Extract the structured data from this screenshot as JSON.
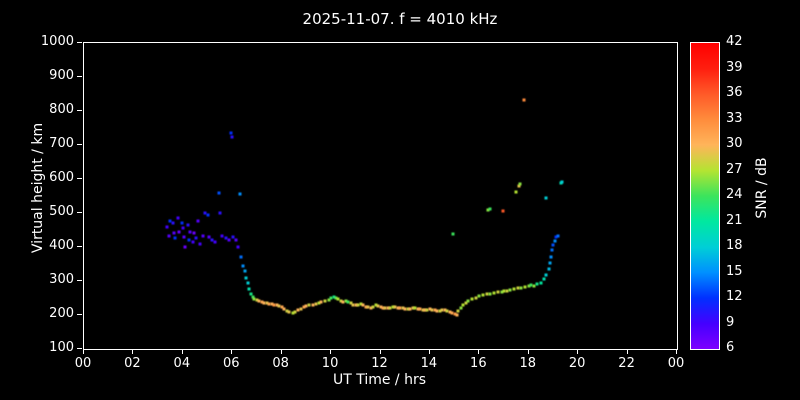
{
  "chart_data": {
    "type": "scatter",
    "title": "2025-11-07. f = 4010 kHz",
    "xlabel": "UT Time / hrs",
    "ylabel": "Virtual height / km",
    "xlim": [
      0,
      24
    ],
    "ylim": [
      100,
      1000
    ],
    "x_tick_labels": [
      "00",
      "02",
      "04",
      "06",
      "08",
      "10",
      "12",
      "14",
      "16",
      "18",
      "20",
      "22",
      "00"
    ],
    "y_tick_values": [
      100,
      200,
      300,
      400,
      500,
      600,
      700,
      800,
      900,
      1000
    ],
    "grid": false,
    "background": "#000000",
    "point_color_meaning": "SNR in dB mapped through rainbow colorbar",
    "colorbar": {
      "label": "SNR / dB",
      "min": 6,
      "max": 42,
      "ticks": [
        6,
        9,
        12,
        15,
        18,
        21,
        24,
        27,
        30,
        33,
        36,
        39,
        42
      ],
      "stops": [
        [
          6,
          "#7d00ff"
        ],
        [
          9,
          "#4400ff"
        ],
        [
          12,
          "#0030ff"
        ],
        [
          15,
          "#0090ff"
        ],
        [
          18,
          "#00cfd6"
        ],
        [
          21,
          "#00e8a0"
        ],
        [
          24,
          "#3ce45c"
        ],
        [
          27,
          "#b4e432"
        ],
        [
          30,
          "#ffb45a"
        ],
        [
          33,
          "#ff8c3c"
        ],
        [
          36,
          "#ff5a28"
        ],
        [
          39,
          "#ff1e0f"
        ],
        [
          42,
          "#ff0000"
        ]
      ]
    },
    "points": [
      [
        3.35,
        460,
        9
      ],
      [
        3.45,
        432,
        8
      ],
      [
        3.5,
        476,
        12
      ],
      [
        3.6,
        470,
        10
      ],
      [
        3.65,
        440,
        8
      ],
      [
        3.7,
        425,
        12
      ],
      [
        3.8,
        486,
        9
      ],
      [
        3.85,
        445,
        7
      ],
      [
        3.95,
        470,
        12
      ],
      [
        4.0,
        455,
        9
      ],
      [
        4.05,
        430,
        8
      ],
      [
        4.1,
        400,
        7
      ],
      [
        4.2,
        466,
        10
      ],
      [
        4.25,
        420,
        12
      ],
      [
        4.3,
        445,
        8
      ],
      [
        4.4,
        415,
        9
      ],
      [
        4.45,
        440,
        7
      ],
      [
        4.55,
        425,
        10
      ],
      [
        4.6,
        476,
        8
      ],
      [
        4.7,
        410,
        9
      ],
      [
        4.8,
        432,
        8
      ],
      [
        4.9,
        500,
        10
      ],
      [
        5.0,
        494,
        12
      ],
      [
        5.05,
        430,
        8
      ],
      [
        5.2,
        420,
        10
      ],
      [
        5.3,
        415,
        9
      ],
      [
        5.45,
        560,
        13
      ],
      [
        5.5,
        500,
        10
      ],
      [
        5.6,
        432,
        9
      ],
      [
        5.75,
        426,
        10
      ],
      [
        5.85,
        420,
        8
      ],
      [
        5.95,
        735,
        12
      ],
      [
        6.0,
        724,
        10
      ],
      [
        6.05,
        430,
        10
      ],
      [
        6.15,
        420,
        8
      ],
      [
        6.25,
        400,
        9
      ],
      [
        6.3,
        555,
        15
      ],
      [
        6.35,
        370,
        14
      ],
      [
        6.45,
        345,
        15
      ],
      [
        6.5,
        330,
        16
      ],
      [
        6.55,
        310,
        18
      ],
      [
        6.62,
        295,
        18
      ],
      [
        6.68,
        276,
        20
      ],
      [
        6.75,
        262,
        22
      ],
      [
        6.82,
        252,
        24
      ],
      [
        6.9,
        248,
        26
      ],
      [
        7.0,
        243,
        28
      ],
      [
        7.1,
        240,
        30
      ],
      [
        7.2,
        238,
        31
      ],
      [
        7.3,
        236,
        30
      ],
      [
        7.4,
        234,
        29
      ],
      [
        7.5,
        232,
        31
      ],
      [
        7.6,
        231,
        30
      ],
      [
        7.7,
        229,
        32
      ],
      [
        7.8,
        228,
        30
      ],
      [
        7.9,
        226,
        29
      ],
      [
        8.0,
        224,
        31
      ],
      [
        8.1,
        218,
        30
      ],
      [
        8.2,
        212,
        28
      ],
      [
        8.3,
        208,
        29
      ],
      [
        8.45,
        205,
        27
      ],
      [
        8.55,
        208,
        28
      ],
      [
        8.65,
        214,
        30
      ],
      [
        8.8,
        219,
        29
      ],
      [
        8.9,
        223,
        31
      ],
      [
        9.0,
        226,
        30
      ],
      [
        9.1,
        228,
        28
      ],
      [
        9.25,
        230,
        30
      ],
      [
        9.4,
        232,
        29
      ],
      [
        9.5,
        234,
        27
      ],
      [
        9.6,
        237,
        30
      ],
      [
        9.75,
        240,
        28
      ],
      [
        9.9,
        245,
        26
      ],
      [
        10.0,
        250,
        24
      ],
      [
        10.1,
        253,
        22
      ],
      [
        10.2,
        251,
        25
      ],
      [
        10.3,
        246,
        27
      ],
      [
        10.4,
        241,
        28
      ],
      [
        10.5,
        238,
        30
      ],
      [
        10.6,
        242,
        26
      ],
      [
        10.7,
        239,
        24
      ],
      [
        10.8,
        234,
        28
      ],
      [
        10.9,
        230,
        29
      ],
      [
        11.0,
        228,
        30
      ],
      [
        11.1,
        229,
        28
      ],
      [
        11.2,
        231,
        27
      ],
      [
        11.3,
        228,
        30
      ],
      [
        11.4,
        225,
        31
      ],
      [
        11.5,
        223,
        29
      ],
      [
        11.6,
        222,
        30
      ],
      [
        11.7,
        225,
        28
      ],
      [
        11.8,
        228,
        27
      ],
      [
        11.9,
        226,
        29
      ],
      [
        12.0,
        224,
        30
      ],
      [
        12.1,
        222,
        31
      ],
      [
        12.2,
        221,
        29
      ],
      [
        12.3,
        220,
        30
      ],
      [
        12.4,
        221,
        28
      ],
      [
        12.5,
        224,
        27
      ],
      [
        12.6,
        225,
        29
      ],
      [
        12.7,
        222,
        30
      ],
      [
        12.8,
        221,
        31
      ],
      [
        12.9,
        220,
        29
      ],
      [
        13.0,
        219,
        30
      ],
      [
        13.1,
        218,
        28
      ],
      [
        13.2,
        218,
        30
      ],
      [
        13.3,
        220,
        29
      ],
      [
        13.4,
        222,
        27
      ],
      [
        13.5,
        219,
        30
      ],
      [
        13.6,
        217,
        31
      ],
      [
        13.7,
        216,
        29
      ],
      [
        13.8,
        215,
        30
      ],
      [
        13.9,
        216,
        28
      ],
      [
        14.0,
        218,
        30
      ],
      [
        14.1,
        216,
        29
      ],
      [
        14.2,
        214,
        31
      ],
      [
        14.3,
        212,
        30
      ],
      [
        14.4,
        213,
        28
      ],
      [
        14.5,
        215,
        29
      ],
      [
        14.6,
        214,
        30
      ],
      [
        14.7,
        212,
        28
      ],
      [
        14.8,
        209,
        30
      ],
      [
        14.9,
        206,
        31
      ],
      [
        15.0,
        203,
        32
      ],
      [
        15.08,
        200,
        30
      ],
      [
        15.15,
        212,
        28
      ],
      [
        15.25,
        222,
        26
      ],
      [
        15.35,
        230,
        27
      ],
      [
        15.45,
        236,
        28
      ],
      [
        15.55,
        242,
        26
      ],
      [
        15.7,
        247,
        27
      ],
      [
        15.85,
        251,
        28
      ],
      [
        16.0,
        255,
        26
      ],
      [
        16.15,
        258,
        27
      ],
      [
        16.3,
        261,
        28
      ],
      [
        16.45,
        263,
        26
      ],
      [
        16.6,
        266,
        27
      ],
      [
        16.75,
        269,
        28
      ],
      [
        16.9,
        268,
        26
      ],
      [
        17.0,
        270,
        27
      ],
      [
        17.1,
        272,
        28
      ],
      [
        17.25,
        274,
        26
      ],
      [
        17.4,
        276,
        27
      ],
      [
        17.55,
        278,
        28
      ],
      [
        17.7,
        280,
        26
      ],
      [
        17.85,
        283,
        27
      ],
      [
        18.0,
        286,
        26
      ],
      [
        18.1,
        288,
        24
      ],
      [
        18.2,
        285,
        26
      ],
      [
        18.35,
        290,
        22
      ],
      [
        18.5,
        295,
        21
      ],
      [
        18.6,
        305,
        20
      ],
      [
        18.7,
        318,
        18
      ],
      [
        18.8,
        335,
        17
      ],
      [
        18.85,
        352,
        16
      ],
      [
        18.9,
        372,
        15
      ],
      [
        18.95,
        390,
        14
      ],
      [
        19.0,
        405,
        13
      ],
      [
        19.05,
        418,
        15
      ],
      [
        19.1,
        428,
        12
      ],
      [
        19.2,
        432,
        14
      ],
      [
        14.95,
        437,
        24
      ],
      [
        16.35,
        510,
        26
      ],
      [
        16.45,
        512,
        24
      ],
      [
        16.95,
        505,
        36
      ],
      [
        17.5,
        562,
        27
      ],
      [
        17.6,
        578,
        29
      ],
      [
        17.65,
        585,
        26
      ],
      [
        17.8,
        832,
        33
      ],
      [
        18.7,
        545,
        18
      ],
      [
        19.3,
        588,
        20
      ],
      [
        19.35,
        592,
        18
      ]
    ]
  }
}
